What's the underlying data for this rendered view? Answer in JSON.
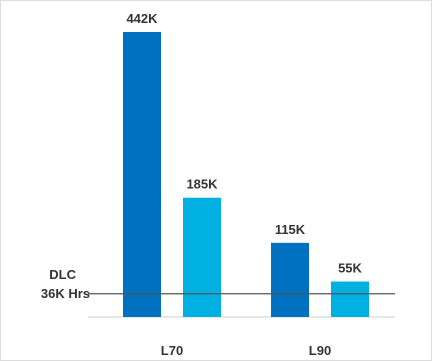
{
  "chart_data": {
    "type": "bar",
    "categories": [
      "L70",
      "L90"
    ],
    "series": [
      {
        "values": [
          442,
          115
        ],
        "color": "#0070c0"
      },
      {
        "values": [
          185,
          55
        ],
        "color": "#00b0e0"
      }
    ],
    "data_labels": [
      [
        "442K",
        "115K"
      ],
      [
        "185K",
        "55K"
      ]
    ],
    "ylim": [
      0,
      460
    ],
    "grid": false,
    "reference_line": {
      "value": 36,
      "label_line1": "DLC",
      "label_line2": "36K Hrs",
      "color": "#555555"
    }
  }
}
